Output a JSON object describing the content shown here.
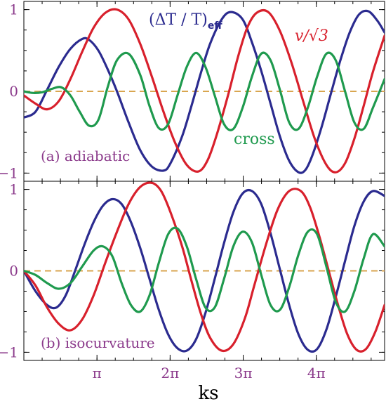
{
  "chart_data": {
    "type": "line",
    "xlabel": "ks",
    "x_tick_labels": [
      "π",
      "2π",
      "3π",
      "4π"
    ],
    "x_tick_values": [
      3.1416,
      6.2832,
      9.4248,
      12.5664
    ],
    "xlim": [
      0,
      15.5
    ],
    "colors": {
      "temperature": "#2b2b8f",
      "velocity": "#d8202c",
      "cross": "#1f9a4e",
      "zero_line": "#d9a650",
      "labels": "#8b3a8b"
    },
    "panels": [
      {
        "label": "(a) adiabatic",
        "ylim": [
          -1.1,
          1.1
        ],
        "y_tick_labels": [
          "1",
          "0",
          "−1"
        ],
        "y_tick_values": [
          1,
          0,
          -1
        ],
        "annotations": {
          "temperature": "(ΔT / T)",
          "temperature_sub": "eff",
          "velocity": "v/√3",
          "cross": "cross"
        },
        "series": [
          {
            "key": "temperature",
            "x": [
              0,
              0.5,
              1.0,
              1.5,
              2.0,
              2.5,
              2.8,
              3.2,
              3.6,
              4.0,
              4.5,
              5.0,
              5.5,
              6.0,
              6.3,
              6.8,
              7.2,
              7.6,
              8.0,
              8.5,
              8.9,
              9.4,
              9.8,
              10.2,
              10.6,
              11.0,
              11.4,
              11.8,
              12.1,
              12.4,
              12.8,
              13.2,
              13.6,
              14.0,
              14.4,
              14.8,
              15.2,
              15.5
            ],
            "y": [
              -0.32,
              -0.25,
              0.02,
              0.3,
              0.52,
              0.64,
              0.63,
              0.5,
              0.27,
              0.0,
              -0.38,
              -0.72,
              -0.92,
              -0.97,
              -0.88,
              -0.55,
              -0.18,
              0.22,
              0.58,
              0.88,
              0.97,
              0.88,
              0.6,
              0.25,
              -0.15,
              -0.55,
              -0.85,
              -0.99,
              -0.96,
              -0.78,
              -0.43,
              -0.02,
              0.38,
              0.72,
              0.94,
              0.98,
              0.86,
              0.72
            ]
          },
          {
            "key": "velocity",
            "x": [
              0,
              0.5,
              1.0,
              1.5,
              2.0,
              2.5,
              3.0,
              3.5,
              4.0,
              4.5,
              5.0,
              5.5,
              6.0,
              6.5,
              7.0,
              7.5,
              7.9,
              8.3,
              8.8,
              9.2,
              9.6,
              10.0,
              10.5,
              11.0,
              11.5,
              12.0,
              12.5,
              13.0,
              13.4,
              13.8,
              14.2,
              14.6,
              15.0,
              15.5
            ],
            "y": [
              -0.05,
              -0.15,
              -0.22,
              -0.12,
              0.15,
              0.48,
              0.78,
              0.96,
              1.0,
              0.88,
              0.58,
              0.18,
              -0.25,
              -0.63,
              -0.9,
              -0.98,
              -0.84,
              -0.52,
              -0.02,
              0.42,
              0.78,
              0.96,
              0.97,
              0.74,
              0.35,
              -0.12,
              -0.58,
              -0.9,
              -0.99,
              -0.88,
              -0.58,
              -0.18,
              0.24,
              0.68
            ]
          },
          {
            "key": "cross",
            "x": [
              0,
              0.4,
              0.8,
              1.2,
              1.6,
              2.0,
              2.4,
              2.8,
              3.2,
              3.6,
              4.0,
              4.5,
              5.0,
              5.4,
              5.8,
              6.2,
              6.6,
              7.0,
              7.4,
              7.8,
              8.2,
              8.6,
              9.0,
              9.4,
              9.8,
              10.2,
              10.6,
              11.0,
              11.4,
              11.8,
              12.2,
              12.6,
              13.0,
              13.4,
              13.8,
              14.2,
              14.6,
              15.0,
              15.5
            ],
            "y": [
              0.0,
              -0.02,
              -0.01,
              0.03,
              0.05,
              -0.05,
              -0.25,
              -0.42,
              -0.35,
              0.05,
              0.38,
              0.46,
              0.2,
              -0.18,
              -0.45,
              -0.4,
              -0.05,
              0.3,
              0.47,
              0.3,
              -0.05,
              -0.4,
              -0.46,
              -0.2,
              0.18,
              0.46,
              0.38,
              0.02,
              -0.38,
              -0.46,
              -0.2,
              0.18,
              0.46,
              0.38,
              0.0,
              -0.38,
              -0.46,
              -0.2,
              0.15
            ]
          }
        ]
      },
      {
        "label": "(b) isocurvature",
        "ylim": [
          -1.1,
          1.1
        ],
        "y_tick_labels": [
          "1",
          "0",
          "−1"
        ],
        "y_tick_values": [
          1,
          0,
          -1
        ],
        "series": [
          {
            "key": "temperature",
            "x": [
              0,
              0.5,
              1.0,
              1.4,
              1.8,
              2.2,
              2.6,
              3.0,
              3.4,
              3.8,
              4.2,
              4.6,
              5.0,
              5.4,
              5.8,
              6.2,
              6.6,
              7.0,
              7.4,
              7.8,
              8.2,
              8.6,
              9.0,
              9.4,
              9.8,
              10.2,
              10.6,
              11.0,
              11.4,
              11.8,
              12.2,
              12.6,
              13.0,
              13.4,
              13.8,
              14.2,
              14.6,
              15.0,
              15.5
            ],
            "y": [
              0.0,
              -0.25,
              -0.42,
              -0.45,
              -0.3,
              0.0,
              0.32,
              0.6,
              0.8,
              0.88,
              0.82,
              0.6,
              0.28,
              -0.1,
              -0.48,
              -0.78,
              -0.95,
              -0.98,
              -0.84,
              -0.52,
              -0.1,
              0.34,
              0.72,
              0.95,
              0.98,
              0.82,
              0.46,
              0.02,
              -0.42,
              -0.78,
              -0.97,
              -0.96,
              -0.72,
              -0.32,
              0.12,
              0.55,
              0.85,
              0.98,
              0.92
            ]
          },
          {
            "key": "velocity",
            "x": [
              0,
              0.5,
              1.0,
              1.5,
              2.0,
              2.5,
              3.0,
              3.5,
              4.0,
              4.5,
              5.0,
              5.5,
              5.9,
              6.3,
              6.8,
              7.2,
              7.6,
              8.0,
              8.5,
              9.0,
              9.5,
              9.9,
              10.4,
              10.9,
              11.4,
              11.9,
              12.3,
              12.7,
              13.1,
              13.5,
              13.9,
              14.3,
              14.7,
              15.1,
              15.5
            ],
            "y": [
              0.0,
              -0.18,
              -0.45,
              -0.65,
              -0.73,
              -0.6,
              -0.3,
              0.1,
              0.48,
              0.82,
              1.03,
              1.08,
              0.98,
              0.72,
              0.3,
              -0.12,
              -0.52,
              -0.82,
              -0.98,
              -0.9,
              -0.58,
              -0.18,
              0.32,
              0.75,
              0.98,
              0.98,
              0.78,
              0.42,
              0.0,
              -0.42,
              -0.78,
              -0.97,
              -0.96,
              -0.75,
              -0.42
            ]
          },
          {
            "key": "cross",
            "x": [
              0,
              0.5,
              1.0,
              1.5,
              2.0,
              2.5,
              3.0,
              3.4,
              3.8,
              4.2,
              4.6,
              5.0,
              5.4,
              5.8,
              6.2,
              6.6,
              7.0,
              7.4,
              7.8,
              8.2,
              8.6,
              9.0,
              9.4,
              9.8,
              10.2,
              10.6,
              11.0,
              11.4,
              11.8,
              12.2,
              12.6,
              13.0,
              13.4,
              13.8,
              14.2,
              14.6,
              15.0,
              15.5
            ],
            "y": [
              0.0,
              -0.05,
              -0.15,
              -0.22,
              -0.15,
              0.05,
              0.25,
              0.3,
              0.18,
              -0.15,
              -0.42,
              -0.5,
              -0.3,
              0.1,
              0.45,
              0.52,
              0.3,
              -0.1,
              -0.45,
              -0.45,
              -0.1,
              0.3,
              0.48,
              0.35,
              -0.05,
              -0.42,
              -0.48,
              -0.2,
              0.2,
              0.48,
              0.45,
              0.05,
              -0.38,
              -0.5,
              -0.25,
              0.15,
              0.45,
              0.3
            ]
          }
        ]
      }
    ]
  }
}
